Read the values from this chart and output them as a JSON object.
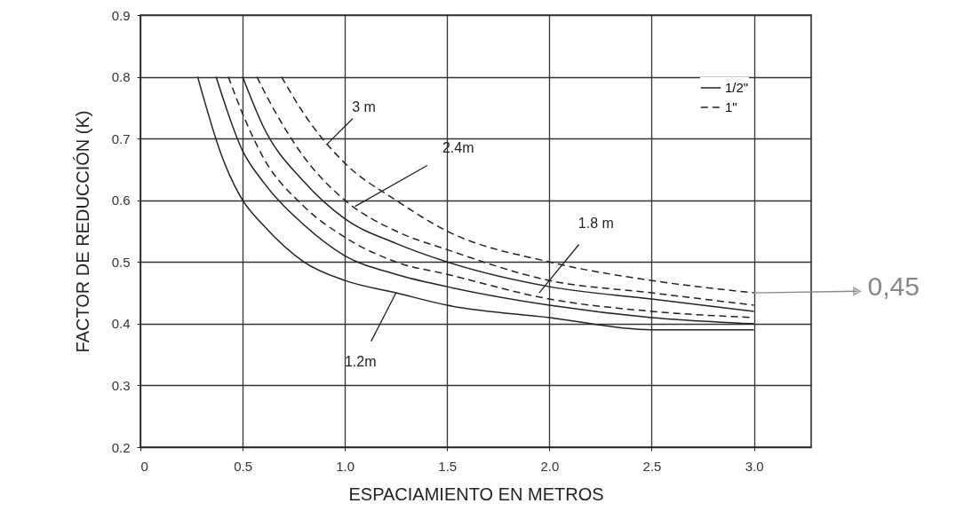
{
  "chart_data": {
    "type": "line",
    "xlabel": "ESPACIAMIENTO EN METROS",
    "ylabel": "FACTOR DE REDUCCIÓN (K)",
    "xlim": [
      0,
      3.28
    ],
    "xticks": [
      0,
      0.5,
      {
        "value": 1,
        "label": "1.0"
      },
      1.5,
      {
        "value": 2,
        "label": "2.0"
      },
      2.5,
      {
        "value": 3,
        "label": "3.0"
      }
    ],
    "ylim": [
      0.2,
      0.9
    ],
    "yticks": [
      0.2,
      0.3,
      0.4,
      0.5,
      0.6,
      0.7,
      0.8,
      0.9
    ],
    "grid": true,
    "legend": "top right",
    "marker": "none",
    "series": [
      {
        "name": "1/2\"",
        "color": "#222222",
        "line_style": "solid",
        "x": [
          0.28,
          0.4,
          0.5,
          0.6,
          0.8,
          1.0,
          1.25,
          1.5,
          2.0,
          2.5,
          3.0
        ],
        "values": [
          0.8,
          0.67,
          0.6,
          0.56,
          0.5,
          0.47,
          0.45,
          0.43,
          0.41,
          0.39,
          0.39
        ]
      },
      {
        "color": "#222222",
        "line_style": "solid",
        "x": [
          0.37,
          0.5,
          0.6,
          0.8,
          1.0,
          1.25,
          1.5,
          2.0,
          2.5,
          3.0
        ],
        "values": [
          0.8,
          0.68,
          0.63,
          0.56,
          0.51,
          0.48,
          0.46,
          0.43,
          0.41,
          0.4
        ]
      },
      {
        "name": "1\"",
        "color": "#222222",
        "line_style": "dashed",
        "x": [
          0.43,
          0.5,
          0.6,
          0.8,
          1.0,
          1.25,
          1.5,
          2.0,
          2.5,
          3.0
        ],
        "values": [
          0.8,
          0.74,
          0.67,
          0.59,
          0.54,
          0.5,
          0.48,
          0.44,
          0.42,
          0.41
        ]
      },
      {
        "color": "#222222",
        "line_style": "solid",
        "x": [
          0.5,
          0.6,
          0.8,
          1.0,
          1.25,
          1.5,
          2.0,
          2.5,
          3.0
        ],
        "values": [
          0.8,
          0.72,
          0.63,
          0.57,
          0.53,
          0.5,
          0.46,
          0.44,
          0.42
        ]
      },
      {
        "color": "#222222",
        "line_style": "dashed",
        "x": [
          0.57,
          0.6,
          0.8,
          1.0,
          1.25,
          1.5,
          2.0,
          2.5,
          3.0
        ],
        "values": [
          0.8,
          0.78,
          0.67,
          0.6,
          0.55,
          0.52,
          0.47,
          0.45,
          0.43
        ]
      },
      {
        "color": "#222222",
        "line_style": "dashed",
        "x": [
          0.69,
          0.8,
          1.0,
          1.25,
          1.5,
          2.0,
          2.5,
          3.0
        ],
        "values": [
          0.8,
          0.74,
          0.66,
          0.6,
          0.55,
          0.5,
          0.47,
          0.45
        ]
      }
    ],
    "annotations": [
      {
        "text": "3 m",
        "x": 0.91,
        "y": 0.69
      },
      {
        "text": "2.4m",
        "x": 1.05,
        "y": 0.59
      },
      {
        "text": "1.8 m",
        "x": 1.95,
        "y": 0.45
      },
      {
        "text": "1.2m",
        "x": 1.25,
        "y": 0.45
      },
      {
        "text": "0,45",
        "x": 3.0,
        "y": 0.45
      }
    ]
  }
}
